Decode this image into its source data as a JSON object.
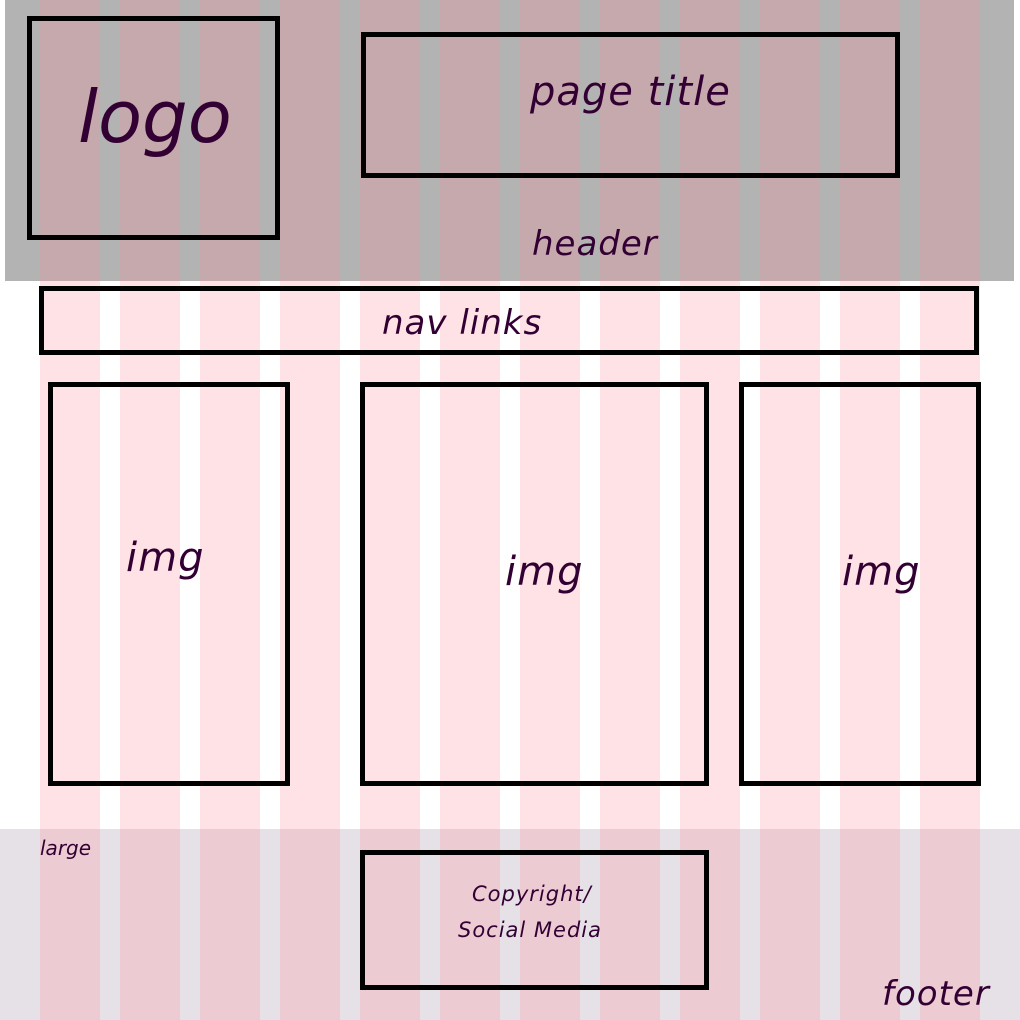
{
  "header": {
    "label": "header",
    "logo": "logo",
    "page_title": "page title"
  },
  "nav": {
    "label": "nav links"
  },
  "gallery": {
    "images": [
      "img",
      "img",
      "img"
    ]
  },
  "footer": {
    "label": "footer",
    "size_note": "large",
    "copyright_line1": "Copyright/",
    "copyright_line2": "Social Media"
  },
  "colors": {
    "header_band": "#b3b3b3",
    "footer_band": "#e6e1e6",
    "grid_column": "#ffe3e5",
    "outline": "#000000",
    "text": "#330033"
  }
}
